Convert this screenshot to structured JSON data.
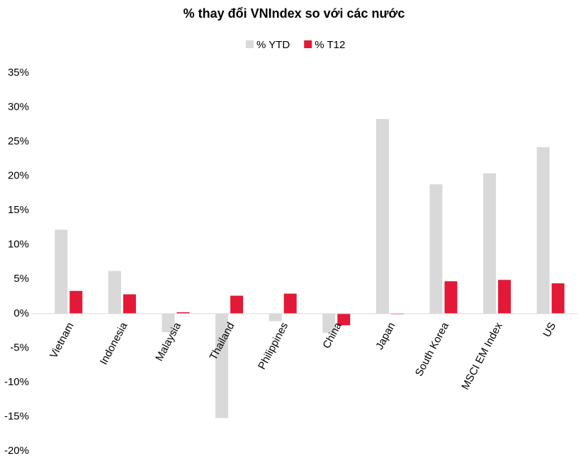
{
  "chart_data": {
    "type": "bar",
    "title": "% thay đổi VNIndex so với các nước",
    "categories": [
      "Vietnam",
      "Indonesia",
      "Malaysia",
      "Thailand",
      "Philippines",
      "China",
      "Japan",
      "South Korea",
      "MSCI EM Index",
      "US"
    ],
    "series": [
      {
        "name": "% YTD",
        "color": "#d9d9d9",
        "values": [
          12.2,
          6.2,
          -2.7,
          -15.2,
          -1.1,
          -2.8,
          28.3,
          18.8,
          20.4,
          24.2
        ]
      },
      {
        "name": "% T12",
        "color": "#e31937",
        "values": [
          3.3,
          2.8,
          0.2,
          2.6,
          2.9,
          -1.7,
          -0.1,
          4.7,
          4.9,
          4.4
        ]
      }
    ],
    "ylim": [
      -20,
      35
    ],
    "yticks": [
      {
        "value": -20,
        "label": "-20%"
      },
      {
        "value": -15,
        "label": "-15%"
      },
      {
        "value": -10,
        "label": "-10%"
      },
      {
        "value": -5,
        "label": "-5%"
      },
      {
        "value": 0,
        "label": "0%"
      },
      {
        "value": 5,
        "label": "5%"
      },
      {
        "value": 10,
        "label": "10%"
      },
      {
        "value": 15,
        "label": "15%"
      },
      {
        "value": 20,
        "label": "20%"
      },
      {
        "value": 25,
        "label": "25%"
      },
      {
        "value": 30,
        "label": "30%"
      },
      {
        "value": 35,
        "label": "35%"
      }
    ],
    "legend": "top"
  }
}
